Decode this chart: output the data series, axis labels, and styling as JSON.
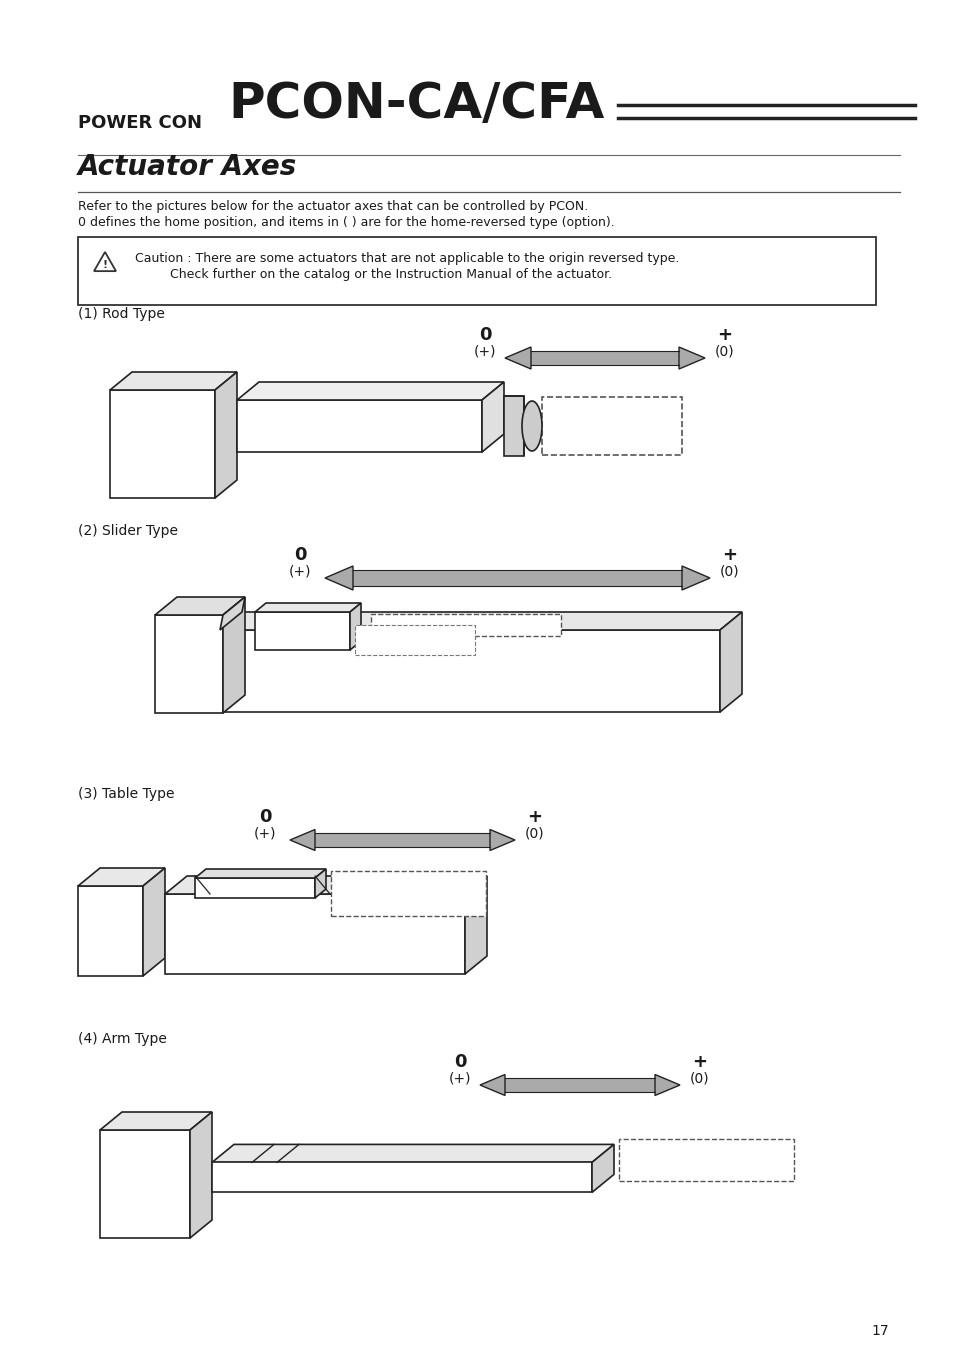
{
  "title_small": "POWER CON",
  "title_large": "PCON-CA/CFA",
  "section_title": "Actuator Axes",
  "desc_line1": "Refer to the pictures below for the actuator axes that can be controlled by PCON.",
  "desc_line2": "0 defines the home position, and items in ( ) are for the home-reversed type (option).",
  "caution_line1": "Caution : There are some actuators that are not applicable to the origin reversed type.",
  "caution_line2": "Check further on the catalog or the Instruction Manual of the actuator.",
  "types": [
    "(1) Rod Type",
    "(2) Slider Type",
    "(3) Table Type",
    "(4) Arm Type"
  ],
  "page_number": "17",
  "bg_color": "#ffffff",
  "text_color": "#1a1a1a",
  "arrow_fill": "#aaaaaa",
  "line_color": "#222222"
}
